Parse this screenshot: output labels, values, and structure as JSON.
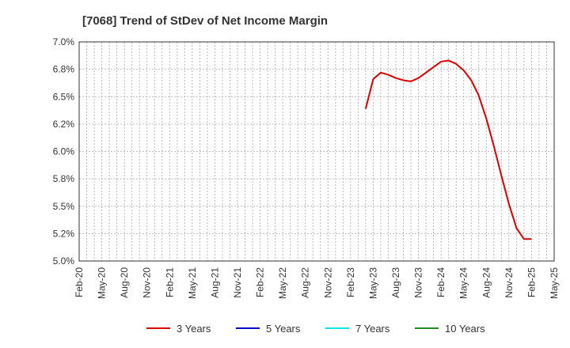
{
  "chart_data": {
    "type": "line",
    "title": "[7068]  Trend of StDev of Net Income Margin",
    "xlabel": "",
    "ylabel": "",
    "ylim": [
      5.0,
      7.0
    ],
    "y_ticks": [
      "5.0%",
      "5.2%",
      "5.5%",
      "5.8%",
      "6.0%",
      "6.2%",
      "6.5%",
      "6.8%",
      "7.0%"
    ],
    "x_ticks": [
      "Feb-20",
      "May-20",
      "Aug-20",
      "Nov-20",
      "Feb-21",
      "May-21",
      "Aug-21",
      "Nov-21",
      "Feb-22",
      "May-22",
      "Aug-22",
      "Nov-22",
      "Feb-23",
      "May-23",
      "Aug-23",
      "Nov-23",
      "Feb-24",
      "May-24",
      "Aug-24",
      "Nov-24",
      "Feb-25",
      "May-25"
    ],
    "grid": true,
    "legend_position": "bottom",
    "series": [
      {
        "name": "3 Years",
        "color": "#dd0000",
        "x": [
          "Apr-23",
          "May-23",
          "Jun-23",
          "Jul-23",
          "Aug-23",
          "Sep-23",
          "Oct-23",
          "Nov-23",
          "Dec-23",
          "Jan-24",
          "Feb-24",
          "Mar-24",
          "Apr-24",
          "May-24",
          "Jun-24",
          "Jul-24",
          "Aug-24",
          "Sep-24",
          "Oct-24",
          "Nov-24",
          "Dec-24",
          "Jan-25",
          "Feb-25"
        ],
        "values": [
          6.39,
          6.66,
          6.72,
          6.7,
          6.67,
          6.65,
          6.64,
          6.67,
          6.72,
          6.77,
          6.82,
          6.83,
          6.8,
          6.74,
          6.65,
          6.51,
          6.3,
          6.05,
          5.78,
          5.52,
          5.3,
          5.2,
          5.2
        ]
      },
      {
        "name": "5 Years",
        "color": "#0000cc",
        "x": [],
        "values": []
      },
      {
        "name": "7 Years",
        "color": "#00e5ee",
        "x": [],
        "values": []
      },
      {
        "name": "10 Years",
        "color": "#228b22",
        "x": [],
        "values": []
      }
    ]
  }
}
